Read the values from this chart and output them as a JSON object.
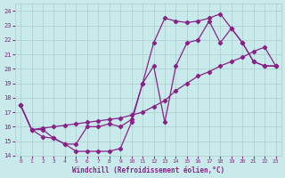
{
  "xlabel": "Windchill (Refroidissement éolien,°C)",
  "bg_color": "#c8eaea",
  "grid_color": "#aacccc",
  "line_color": "#882288",
  "xlim": [
    -0.5,
    23.5
  ],
  "ylim": [
    14,
    24.5
  ],
  "yticks": [
    14,
    15,
    16,
    17,
    18,
    19,
    20,
    21,
    22,
    23,
    24
  ],
  "xticks": [
    0,
    1,
    2,
    3,
    4,
    5,
    6,
    7,
    8,
    9,
    10,
    11,
    12,
    13,
    14,
    15,
    16,
    17,
    18,
    19,
    20,
    21,
    22,
    23
  ],
  "line1_x": [
    0,
    1,
    2,
    3,
    4,
    5,
    6,
    7,
    8,
    9,
    10,
    11,
    12,
    13,
    14,
    15,
    16,
    17,
    18,
    19,
    20,
    21,
    22,
    23
  ],
  "line1_y": [
    17.5,
    15.8,
    15.8,
    15.2,
    14.8,
    14.3,
    14.3,
    14.3,
    14.3,
    14.5,
    16.3,
    19.0,
    21.8,
    23.5,
    23.3,
    23.2,
    23.3,
    23.5,
    23.8,
    22.8,
    21.8,
    20.5,
    20.2,
    20.2
  ],
  "line2_x": [
    0,
    1,
    2,
    3,
    4,
    5,
    6,
    7,
    8,
    9,
    10,
    11,
    12,
    13,
    14,
    15,
    16,
    17,
    18,
    19,
    20,
    21,
    22,
    23
  ],
  "line2_y": [
    17.5,
    15.8,
    15.9,
    16.0,
    16.1,
    16.2,
    16.3,
    16.4,
    16.5,
    16.6,
    16.8,
    17.0,
    17.4,
    17.8,
    18.5,
    19.0,
    19.5,
    19.8,
    20.2,
    20.5,
    20.8,
    21.2,
    21.5,
    20.2
  ],
  "line3_x": [
    0,
    1,
    2,
    3,
    4,
    5,
    6,
    7,
    8,
    9,
    10,
    11,
    12,
    13,
    14,
    15,
    16,
    17,
    18,
    19,
    20,
    21,
    22,
    23
  ],
  "line3_y": [
    17.5,
    15.8,
    15.3,
    15.2,
    14.8,
    14.8,
    16.0,
    16.0,
    16.2,
    16.0,
    16.5,
    19.0,
    20.2,
    16.3,
    20.2,
    21.8,
    22.0,
    23.3,
    21.8,
    22.8,
    21.8,
    20.5,
    20.2,
    20.2
  ]
}
